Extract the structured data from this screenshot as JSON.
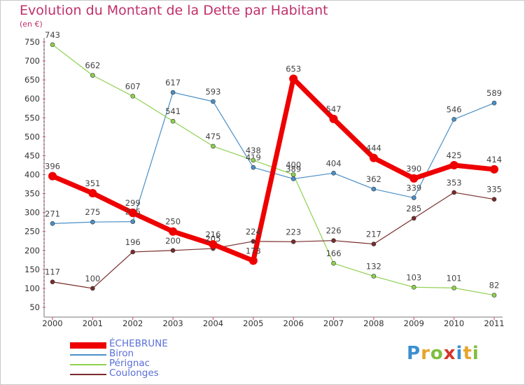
{
  "title": "Evolution du Montant de la Dette par Habitant",
  "unit_label": "(en €)",
  "logo": {
    "text": "Proxiti",
    "letters": [
      {
        "ch": "P",
        "color": "#3a8fd0"
      },
      {
        "ch": "r",
        "color": "#e7a52b"
      },
      {
        "ch": "o",
        "color": "#7fbf3f"
      },
      {
        "ch": "x",
        "color": "#d8342a"
      },
      {
        "ch": "i",
        "color": "#3a8fd0"
      },
      {
        "ch": "t",
        "color": "#e7a52b"
      },
      {
        "ch": "i",
        "color": "#7fbf3f"
      }
    ]
  },
  "chart_data": {
    "type": "line",
    "title": "Evolution du Montant de la Dette par Habitant",
    "ylabel": "(en €)",
    "x": [
      "2000",
      "2001",
      "2002",
      "2003",
      "2004",
      "2005",
      "2006",
      "2007",
      "2008",
      "2009",
      "2010",
      "2011"
    ],
    "ylim": [
      50,
      750
    ],
    "yticks": [
      50,
      100,
      150,
      200,
      250,
      300,
      350,
      400,
      450,
      500,
      550,
      600,
      650,
      700,
      750
    ],
    "grid": false,
    "legend_position": "bottom-left",
    "series": [
      {
        "name": "ÉCHEBRUNE",
        "color": "#ee0000",
        "width": 7,
        "values": [
          396,
          351,
          299,
          250,
          216,
          173,
          653,
          547,
          444,
          390,
          425,
          414
        ]
      },
      {
        "name": "Biron",
        "color": "#4a90c8",
        "width": 1.2,
        "values": [
          271,
          275,
          276,
          617,
          593,
          419,
          389,
          404,
          362,
          339,
          546,
          589
        ]
      },
      {
        "name": "Pérignac",
        "color": "#8fd14f",
        "width": 1.2,
        "values": [
          743,
          662,
          607,
          541,
          475,
          438,
          400,
          166,
          132,
          103,
          101,
          82
        ]
      },
      {
        "name": "Coulonges",
        "color": "#7a2b2b",
        "width": 1.2,
        "values": [
          117,
          100,
          196,
          200,
          205,
          224,
          223,
          226,
          217,
          285,
          353,
          335
        ]
      }
    ]
  }
}
